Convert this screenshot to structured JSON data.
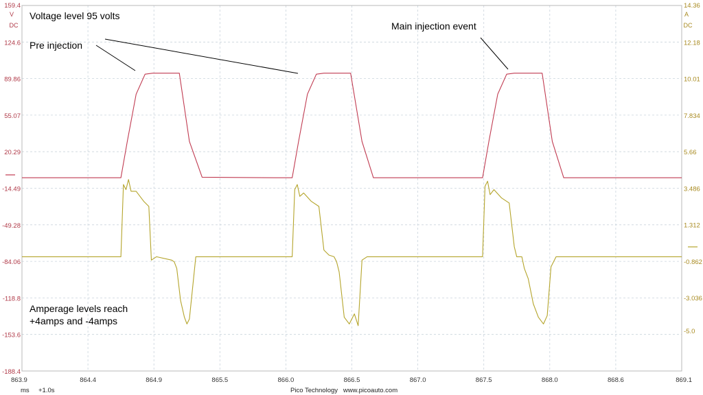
{
  "chart_data": {
    "type": "line",
    "x_ticks": [
      "863.9",
      "864.4",
      "864.9",
      "865.5",
      "866.0",
      "866.5",
      "867.0",
      "867.5",
      "868.0",
      "868.6",
      "869.1"
    ],
    "xlim": [
      863.9,
      869.1
    ],
    "left_axis": {
      "unit_line1": "V",
      "unit_line2": "DC",
      "ticks": [
        "159.4",
        "124.6",
        "89.86",
        "55.07",
        "20.29",
        "-14.49",
        "-49.28",
        "-84.06",
        "-118.8",
        "-153.6",
        "-188.4"
      ],
      "ylim": [
        -188.4,
        159.4
      ]
    },
    "right_axis": {
      "unit_line1": "A",
      "unit_line2": "DC",
      "ticks": [
        "14.36",
        "12.18",
        "10.01",
        "7.834",
        "5.66",
        "3.486",
        "1.312",
        "-0.862",
        "-3.036",
        "-5.0"
      ],
      "ylim": [
        -7.4,
        14.36
      ]
    },
    "grid": true,
    "series": [
      {
        "color": "#c03a50",
        "axis": "left",
        "x": [
          863.9,
          864.68,
          864.73,
          864.8,
          864.87,
          864.93,
          865.14,
          865.22,
          865.32,
          865.9,
          866.03,
          866.08,
          866.15,
          866.22,
          866.28,
          866.49,
          866.58,
          866.67,
          867.3,
          867.53,
          867.58,
          867.65,
          867.72,
          867.78,
          868.0,
          868.08,
          868.17,
          869.1
        ],
        "values": [
          -4.5,
          -4.5,
          30,
          75,
          94,
          95,
          95,
          30,
          -4.0,
          -4.5,
          -4.5,
          30,
          75,
          94,
          95,
          95,
          30,
          -4.5,
          -4.5,
          -4.5,
          30,
          75,
          94,
          95,
          95,
          30,
          -4.5,
          -4.5
        ]
      },
      {
        "color": "#b4a42a",
        "axis": "right",
        "x": [
          863.9,
          864.68,
          864.7,
          864.72,
          864.74,
          864.76,
          864.8,
          864.86,
          864.9,
          864.92,
          864.96,
          865.08,
          865.1,
          865.12,
          865.15,
          865.18,
          865.2,
          865.22,
          865.27,
          865.5,
          865.9,
          866.03,
          866.05,
          866.07,
          866.09,
          866.12,
          866.18,
          866.24,
          866.28,
          866.32,
          866.36,
          866.38,
          866.4,
          866.44,
          866.48,
          866.52,
          866.55,
          866.58,
          866.62,
          866.8,
          867.3,
          867.53,
          867.55,
          867.57,
          867.59,
          867.62,
          867.68,
          867.74,
          867.78,
          867.8,
          867.84,
          867.86,
          867.89,
          867.93,
          867.97,
          868.01,
          868.04,
          868.07,
          868.11,
          868.4,
          869.1
        ],
        "values": [
          -0.6,
          -0.6,
          3.7,
          3.4,
          4.0,
          3.3,
          3.3,
          2.7,
          2.4,
          -0.8,
          -0.6,
          -0.8,
          -0.9,
          -1.3,
          -3.2,
          -4.2,
          -4.6,
          -4.3,
          -0.6,
          -0.6,
          -0.6,
          -0.6,
          3.4,
          3.7,
          3.0,
          3.2,
          2.7,
          2.4,
          -0.2,
          -0.5,
          -0.6,
          -0.9,
          -1.5,
          -4.2,
          -4.6,
          -4.0,
          -4.7,
          -0.8,
          -0.6,
          -0.6,
          -0.6,
          -0.6,
          3.6,
          3.9,
          3.1,
          3.4,
          2.9,
          2.6,
          0.0,
          -0.6,
          -0.6,
          -1.3,
          -1.9,
          -3.4,
          -4.2,
          -4.6,
          -4.1,
          -1.2,
          -0.6,
          -0.6,
          -0.6
        ]
      }
    ],
    "annotations": {
      "voltage": "Voltage level 95 volts",
      "pre": "Pre injection",
      "main": "Main injection event",
      "amp_line1": "Amperage levels reach",
      "amp_line2": "+4amps and -4amps"
    }
  },
  "footer": {
    "unit": "ms",
    "scale": "+1.0s",
    "brand": "Pico Technology   www.picoauto.com"
  }
}
